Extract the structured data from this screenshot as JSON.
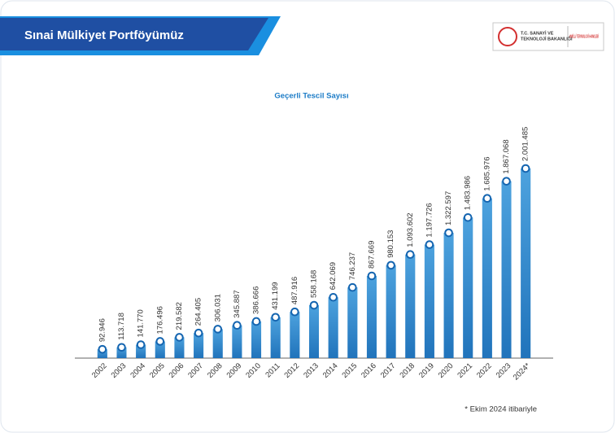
{
  "header": {
    "title": "Sınai Mülkiyet Portföyümüz",
    "logo_line1": "T.C. SANAYİ VE",
    "logo_line2": "TEKNOLOJİ BAKANLIĞI",
    "logo_tag": "#MİLLİ TEKNOLOJİ HAMLESİ"
  },
  "chart_data": {
    "type": "bar",
    "title": "Geçerli Tescil Sayısı",
    "color": "#1c7cc7",
    "categories": [
      "2002",
      "2003",
      "2004",
      "2005",
      "2006",
      "2007",
      "2008",
      "2009",
      "2010",
      "2011",
      "2012",
      "2013",
      "2014",
      "2015",
      "2016",
      "2017",
      "2018",
      "2019",
      "2020",
      "2021",
      "2022",
      "2023",
      "2024*"
    ],
    "values": [
      92946,
      113718,
      141770,
      176496,
      219582,
      264405,
      306031,
      345887,
      386666,
      431199,
      487916,
      558168,
      642069,
      746237,
      867669,
      980153,
      1093602,
      1197726,
      1322597,
      1483986,
      1685976,
      1867068,
      2001485
    ],
    "value_labels": [
      "92.946",
      "113.718",
      "141.770",
      "176.496",
      "219.582",
      "264.405",
      "306.031",
      "345.887",
      "386.666",
      "431.199",
      "487.916",
      "558.168",
      "642.069",
      "746.237",
      "867.669",
      "980.153",
      "1.093.602",
      "1.197.726",
      "1.322.597",
      "1.483.986",
      "1.685.976",
      "1.867.068",
      "2.001.485"
    ],
    "note": "* Ekim 2024 itibariyle"
  }
}
